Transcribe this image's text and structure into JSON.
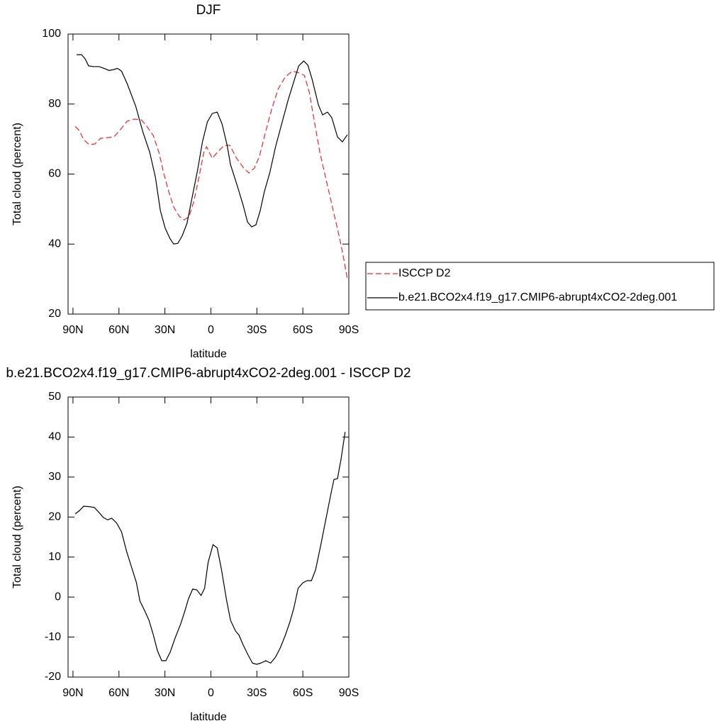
{
  "chart_data": [
    {
      "type": "line",
      "title": "DJF",
      "xlabel": "latitude",
      "ylabel": "Total cloud (percent)",
      "xlim": [
        93.2,
        -90
      ],
      "xticks": [
        {
          "value": 90,
          "label": "90N"
        },
        {
          "value": 60,
          "label": "60N"
        },
        {
          "value": 30,
          "label": "30N"
        },
        0,
        {
          "value": -30,
          "label": "30S"
        },
        {
          "value": -60,
          "label": "60S"
        },
        {
          "value": -90,
          "label": "90S"
        }
      ],
      "ylim": [
        20,
        100
      ],
      "yticks": [
        20,
        40,
        60,
        80,
        100
      ],
      "legend": "right",
      "series": [
        {
          "name": "ISCCP D2",
          "color": "#e8262b",
          "dash": "dashed",
          "x": [
            88.5,
            85.8,
            83,
            79.4,
            75.7,
            72,
            67.4,
            63.3,
            59.2,
            54.6,
            50,
            45.4,
            41.7,
            37.6,
            33.9,
            30.7,
            27.5,
            24.3,
            20.6,
            17.4,
            14.2,
            11,
            7.8,
            4.6,
            2.8,
            -0.9,
            -5,
            -8.7,
            -12.4,
            -16.5,
            -21.1,
            -24.8,
            -28.4,
            -31.7,
            -35.8,
            -39.9,
            -44,
            -48.6,
            -53.2,
            -56.9,
            -61,
            -64.2,
            -67.4,
            -71.1,
            -74.3,
            -77.5,
            -80.7,
            -83.9,
            -86.7,
            -89
          ],
          "values": [
            73.6,
            72.4,
            69.8,
            68.4,
            68.6,
            70.2,
            70.4,
            70.6,
            72.6,
            75.1,
            75.7,
            75.5,
            73.6,
            71,
            66.2,
            60.1,
            55,
            50.6,
            47.9,
            46.9,
            47.9,
            52.4,
            59.1,
            66.2,
            67.8,
            64.5,
            66.6,
            68.2,
            68.2,
            64.7,
            61.9,
            60.3,
            61.7,
            65.1,
            72.2,
            78.9,
            84.4,
            87.8,
            89.4,
            89,
            88.2,
            83.4,
            75.3,
            66.2,
            60.1,
            54,
            47.9,
            41.9,
            35.8,
            30.1
          ]
        },
        {
          "name": "b.e21.BCO2x4.f19_g17.CMIP6-abrupt4xCO2-2deg.001",
          "color": "#000000",
          "dash": "solid",
          "x": [
            87.6,
            84.4,
            82,
            79.8,
            76.6,
            73,
            69.7,
            66.5,
            63.8,
            61,
            58.3,
            54.6,
            49,
            44.5,
            39.9,
            36.2,
            33,
            29.8,
            26.6,
            24.3,
            21.6,
            18.8,
            15.6,
            12.4,
            8.7,
            5.5,
            2.3,
            -0.9,
            -4.1,
            -7.3,
            -10.6,
            -12.8,
            -17.4,
            -21.1,
            -23.9,
            -26.6,
            -29.4,
            -32.1,
            -34.9,
            -38.5,
            -42.2,
            -46.3,
            -50.5,
            -54.1,
            -57.3,
            -60.6,
            -63.3,
            -66.1,
            -70.2,
            -72.9,
            -76.1,
            -78.9,
            -82.6,
            -85.8,
            -89
          ],
          "values": [
            94.1,
            94.1,
            92.9,
            90.9,
            90.7,
            90.7,
            90.2,
            89.6,
            89.8,
            90.2,
            89.4,
            85.8,
            79.3,
            72.2,
            66.2,
            59.1,
            49.6,
            44.5,
            41.5,
            40,
            40.2,
            42.3,
            45.9,
            53,
            61.1,
            69.2,
            74.9,
            77.3,
            77.7,
            74.3,
            68.2,
            62.7,
            56.4,
            51,
            46.3,
            44.9,
            45.5,
            49.4,
            55,
            60.5,
            67.8,
            74.5,
            81.3,
            86.4,
            90.9,
            92.3,
            91.1,
            87,
            79.7,
            76.9,
            77.7,
            76.1,
            70.6,
            69.2,
            71.2
          ]
        }
      ]
    },
    {
      "type": "line",
      "title": "b.e21.BCO2x4.f19_g17.CMIP6-abrupt4xCO2-2deg.001 - ISCCP D2",
      "xlabel": "latitude",
      "ylabel": "Total cloud (percent)",
      "xlim": [
        93.2,
        -90
      ],
      "xticks": [
        {
          "value": 90,
          "label": "90N"
        },
        {
          "value": 60,
          "label": "60N"
        },
        {
          "value": 30,
          "label": "30N"
        },
        0,
        {
          "value": -30,
          "label": "30S"
        },
        {
          "value": -60,
          "label": "60S"
        },
        {
          "value": -90,
          "label": "90S"
        }
      ],
      "ylim": [
        -20,
        50
      ],
      "yticks": [
        -20,
        -10,
        0,
        10,
        20,
        30,
        40,
        50
      ],
      "series": [
        {
          "color": "#000000",
          "dash": "solid",
          "x": [
            88.5,
            85.8,
            83,
            79.4,
            76.1,
            72.9,
            70.2,
            67.4,
            64.7,
            61.5,
            58.3,
            55,
            51.8,
            48.6,
            46.3,
            43.1,
            40.4,
            37.6,
            34.9,
            32.1,
            29.4,
            26.6,
            23.4,
            19.7,
            17,
            14.7,
            11.9,
            9.2,
            6.4,
            4.1,
            1.8,
            -1.4,
            -4.1,
            -6.9,
            -10.1,
            -12.8,
            -16.1,
            -18.3,
            -21.1,
            -23.9,
            -27.1,
            -29.8,
            -32.6,
            -35.8,
            -39,
            -42.2,
            -45.4,
            -48.6,
            -51.4,
            -54.1,
            -56.9,
            -60.1,
            -62.8,
            -65.6,
            -68.3,
            -71.6,
            -74.8,
            -78,
            -80.3,
            -82.6,
            -84.9,
            -87.6
          ],
          "values": [
            20.8,
            21.6,
            22.7,
            22.6,
            22.4,
            21.1,
            19.9,
            19.3,
            19.7,
            18.5,
            16.3,
            11.4,
            7.5,
            3.6,
            -1,
            -3.5,
            -5.8,
            -9.4,
            -13.4,
            -15.9,
            -15.9,
            -13.8,
            -10.3,
            -6.7,
            -3.5,
            -0.5,
            2,
            1.8,
            0.4,
            2.2,
            8.7,
            13.1,
            12.3,
            6.9,
            -0.5,
            -5.8,
            -8.5,
            -9.5,
            -12,
            -14.2,
            -16.5,
            -16.8,
            -16.5,
            -15.9,
            -16.5,
            -15,
            -12.6,
            -9.5,
            -6.4,
            -2.8,
            2.2,
            3.6,
            4.1,
            4.1,
            6.8,
            12.8,
            19,
            25.2,
            29.4,
            29.6,
            34.4,
            41.3
          ]
        }
      ]
    }
  ]
}
